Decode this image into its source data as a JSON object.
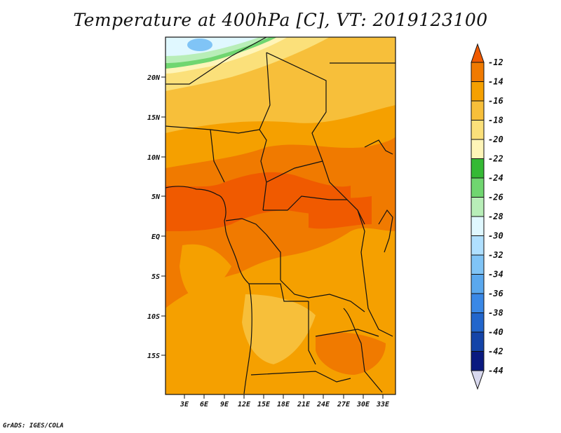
{
  "title": "Temperature at 400hPa [C], VT: 2019123100",
  "credit": "GrADS: IGES/COLA",
  "map": {
    "lat_labels": [
      "20N",
      "15N",
      "10N",
      "5N",
      "EQ",
      "5S",
      "10S",
      "15S"
    ],
    "lon_labels": [
      "3E",
      "6E",
      "9E",
      "12E",
      "15E",
      "18E",
      "21E",
      "24E",
      "27E",
      "30E",
      "33E"
    ]
  },
  "colorbar": {
    "labels": [
      "-12",
      "-14",
      "-16",
      "-18",
      "-20",
      "-22",
      "-24",
      "-26",
      "-28",
      "-30",
      "-32",
      "-34",
      "-36",
      "-38",
      "-40",
      "-42",
      "-44"
    ],
    "colors": [
      "#f05a00",
      "#f07a00",
      "#f5a000",
      "#f7bf3a",
      "#fbe07a",
      "#fff5b8",
      "#35b935",
      "#70d670",
      "#b8eeb8",
      "#e0f8ff",
      "#b0e0ff",
      "#80c4f6",
      "#5aa8ee",
      "#3a88e6",
      "#2266cc",
      "#1444a8",
      "#0a1a80",
      "#d8d8ee"
    ]
  }
}
